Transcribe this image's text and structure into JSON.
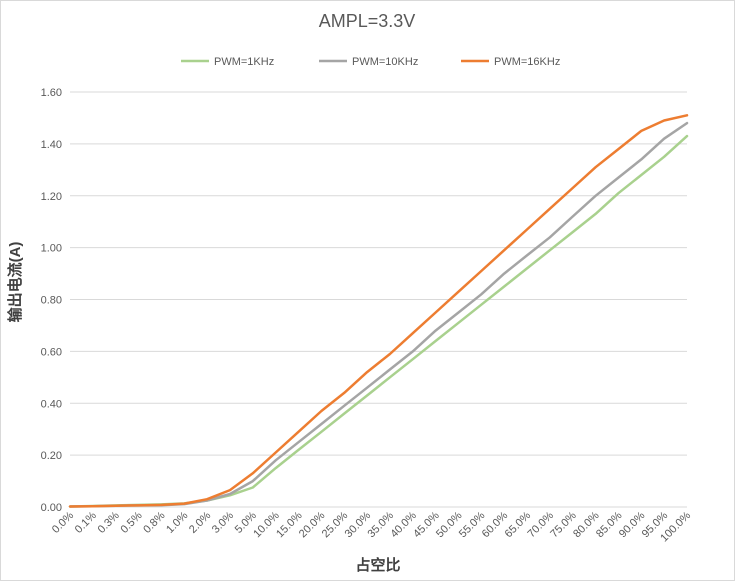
{
  "chart_data": {
    "type": "line",
    "title": "AMPL=3.3V",
    "xlabel": "占空比",
    "ylabel": "输出电流(A)",
    "categories": [
      "0.0%",
      "0.1%",
      "0.3%",
      "0.5%",
      "0.8%",
      "1.0%",
      "2.0%",
      "3.0%",
      "5.0%",
      "10.0%",
      "15.0%",
      "20.0%",
      "25.0%",
      "30.0%",
      "35.0%",
      "40.0%",
      "45.0%",
      "50.0%",
      "55.0%",
      "60.0%",
      "65.0%",
      "70.0%",
      "75.0%",
      "80.0%",
      "85.0%",
      "90.0%",
      "95.0%",
      "100.0%"
    ],
    "yticks": [
      "0.00",
      "0.20",
      "0.40",
      "0.60",
      "0.80",
      "1.00",
      "1.20",
      "1.40",
      "1.60"
    ],
    "ylim": [
      0,
      1.6
    ],
    "grid": true,
    "legend_position": "top",
    "series": [
      {
        "name": "PWM=1KHz",
        "color": "#a9d18e",
        "values": [
          0.002,
          0.004,
          0.006,
          0.008,
          0.01,
          0.014,
          0.025,
          0.045,
          0.075,
          0.15,
          0.22,
          0.29,
          0.36,
          0.43,
          0.5,
          0.57,
          0.64,
          0.71,
          0.78,
          0.85,
          0.92,
          0.99,
          1.06,
          1.13,
          1.21,
          1.28,
          1.35,
          1.43
        ]
      },
      {
        "name": "PWM=10KHz",
        "color": "#a5a5a5",
        "values": [
          0.002,
          0.003,
          0.005,
          0.006,
          0.007,
          0.011,
          0.025,
          0.05,
          0.1,
          0.18,
          0.25,
          0.32,
          0.39,
          0.46,
          0.53,
          0.6,
          0.68,
          0.75,
          0.82,
          0.9,
          0.97,
          1.04,
          1.12,
          1.2,
          1.27,
          1.34,
          1.42,
          1.48
        ]
      },
      {
        "name": "PWM=16KHz",
        "color": "#ed7d31",
        "values": [
          0.002,
          0.003,
          0.005,
          0.006,
          0.008,
          0.013,
          0.03,
          0.065,
          0.13,
          0.21,
          0.29,
          0.37,
          0.44,
          0.52,
          0.59,
          0.67,
          0.75,
          0.83,
          0.91,
          0.99,
          1.07,
          1.15,
          1.23,
          1.31,
          1.38,
          1.45,
          1.49,
          1.51
        ]
      }
    ]
  }
}
